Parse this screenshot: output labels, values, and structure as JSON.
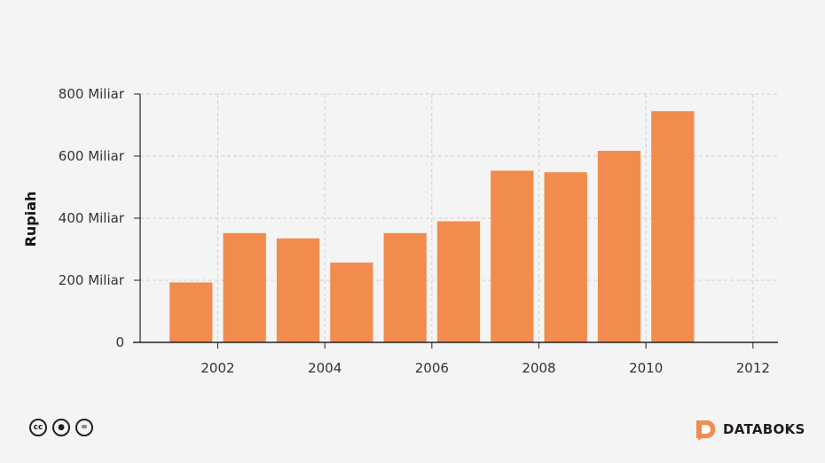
{
  "chart_data": {
    "type": "bar",
    "x": [
      2001,
      2002,
      2003,
      2004,
      2005,
      2006,
      2007,
      2008,
      2009,
      2010
    ],
    "values": [
      193,
      352,
      335,
      257,
      352,
      390,
      553,
      548,
      617,
      745
    ],
    "x_tick_values": [
      2002,
      2004,
      2006,
      2008,
      2010,
      2012
    ],
    "x_tick_labels": [
      "2002",
      "2004",
      "2006",
      "2008",
      "2010",
      "2012"
    ],
    "y_ticks": [
      0,
      200,
      400,
      600,
      800
    ],
    "y_tick_labels": [
      "0",
      "200 Miliar",
      "400 Miliar",
      "600 Miliar",
      "800 Miliar"
    ],
    "ylabel": "Rupiah",
    "ylim": [
      0,
      800
    ],
    "grid": true,
    "bar_color": "#f28b4e",
    "unit": "Miliar Rupiah"
  },
  "footer": {
    "license_icons": [
      "cc-icon",
      "by-attribution-icon",
      "nd-equals-icon"
    ],
    "license_glyphs": [
      "cc",
      "●",
      "="
    ],
    "brand_name": "DATABOKS",
    "brand_color": "#f28b4e"
  }
}
